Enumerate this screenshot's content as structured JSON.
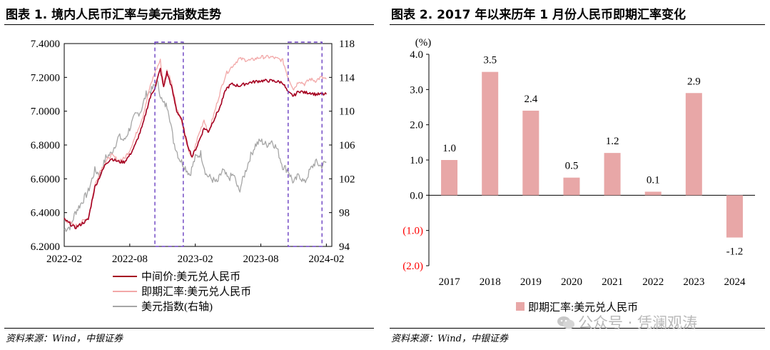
{
  "left": {
    "title": "图表 1. 境内人民币汇率与美元指数走势",
    "source": "资料来源：Wind，中银证券",
    "chart_data": {
      "type": "line",
      "x_ticks": [
        "2022-02",
        "2022-08",
        "2023-02",
        "2023-08",
        "2024-02"
      ],
      "x_range_months": [
        0,
        24.5
      ],
      "left_axis": {
        "ticks": [
          "7.4000",
          "7.2000",
          "7.0000",
          "6.8000",
          "6.6000",
          "6.4000",
          "6.2000"
        ],
        "range": [
          6.2,
          7.4
        ]
      },
      "right_axis": {
        "ticks": [
          "118",
          "114",
          "110",
          "106",
          "102",
          "98",
          "94"
        ],
        "range": [
          94,
          118
        ]
      },
      "legend": [
        "中间价:美元兑人民币",
        "即期汇率:美元兑人民币",
        "美元指数(右轴)"
      ],
      "series": [
        {
          "name": "中间价:美元兑人民币",
          "axis": "left",
          "color": "#a50021",
          "points": [
            [
              0,
              6.36
            ],
            [
              1,
              6.31
            ],
            [
              1.5,
              6.33
            ],
            [
              2.2,
              6.36
            ],
            [
              2.8,
              6.55
            ],
            [
              3.3,
              6.62
            ],
            [
              3.8,
              6.69
            ],
            [
              4.3,
              6.72
            ],
            [
              5,
              6.7
            ],
            [
              5.5,
              6.7
            ],
            [
              6,
              6.74
            ],
            [
              6.5,
              6.8
            ],
            [
              7.2,
              6.92
            ],
            [
              7.8,
              7.07
            ],
            [
              8.3,
              7.14
            ],
            [
              8.8,
              7.25
            ],
            [
              9.1,
              7.14
            ],
            [
              9.4,
              7.23
            ],
            [
              9.8,
              7.15
            ],
            [
              10.3,
              7.0
            ],
            [
              10.7,
              6.96
            ],
            [
              11.2,
              6.82
            ],
            [
              11.7,
              6.73
            ],
            [
              12.2,
              6.8
            ],
            [
              12.8,
              6.9
            ],
            [
              13.2,
              6.88
            ],
            [
              13.7,
              6.95
            ],
            [
              14.3,
              7.03
            ],
            [
              14.8,
              7.13
            ],
            [
              15.3,
              7.16
            ],
            [
              16,
              7.15
            ],
            [
              17,
              7.17
            ],
            [
              18,
              7.18
            ],
            [
              19,
              7.18
            ],
            [
              20,
              7.17
            ],
            [
              20.5,
              7.11
            ],
            [
              21,
              7.09
            ],
            [
              21.5,
              7.12
            ],
            [
              22,
              7.11
            ],
            [
              22.5,
              7.11
            ],
            [
              23,
              7.1
            ],
            [
              23.5,
              7.1
            ],
            [
              24,
              7.1
            ]
          ]
        },
        {
          "name": "即期汇率:美元兑人民币",
          "axis": "left",
          "color": "#f2a8a8",
          "points": [
            [
              0,
              6.36
            ],
            [
              1,
              6.32
            ],
            [
              1.5,
              6.34
            ],
            [
              2.2,
              6.37
            ],
            [
              2.8,
              6.56
            ],
            [
              3.3,
              6.65
            ],
            [
              3.8,
              6.7
            ],
            [
              4.3,
              6.74
            ],
            [
              5,
              6.71
            ],
            [
              5.5,
              6.72
            ],
            [
              6,
              6.77
            ],
            [
              6.5,
              6.85
            ],
            [
              7.2,
              6.97
            ],
            [
              7.8,
              7.13
            ],
            [
              8.3,
              7.23
            ],
            [
              8.8,
              7.3
            ],
            [
              9.1,
              7.16
            ],
            [
              9.4,
              7.24
            ],
            [
              9.8,
              7.18
            ],
            [
              10.3,
              7.02
            ],
            [
              10.7,
              6.95
            ],
            [
              11.2,
              6.8
            ],
            [
              11.7,
              6.72
            ],
            [
              12.2,
              6.84
            ],
            [
              12.8,
              6.95
            ],
            [
              13.2,
              6.87
            ],
            [
              13.7,
              6.98
            ],
            [
              14.3,
              7.12
            ],
            [
              14.8,
              7.22
            ],
            [
              15.3,
              7.26
            ],
            [
              16,
              7.31
            ],
            [
              17,
              7.3
            ],
            [
              18,
              7.32
            ],
            [
              19,
              7.32
            ],
            [
              20,
              7.3
            ],
            [
              20.5,
              7.2
            ],
            [
              21,
              7.13
            ],
            [
              21.5,
              7.18
            ],
            [
              22,
              7.16
            ],
            [
              22.5,
              7.19
            ],
            [
              23,
              7.18
            ],
            [
              23.5,
              7.2
            ],
            [
              24,
              7.19
            ]
          ]
        },
        {
          "name": "美元指数(右轴)",
          "axis": "right",
          "color": "#a6a6a6",
          "points": [
            [
              0,
              96.0
            ],
            [
              0.6,
              96.4
            ],
            [
              1,
              98.0
            ],
            [
              1.5,
              99.0
            ],
            [
              2.2,
              100.5
            ],
            [
              2.8,
              103.0
            ],
            [
              3.3,
              102.5
            ],
            [
              3.8,
              104.5
            ],
            [
              4.3,
              105.0
            ],
            [
              5,
              107.0
            ],
            [
              5.5,
              106.5
            ],
            [
              6,
              108.0
            ],
            [
              6.5,
              109.5
            ],
            [
              7,
              110.0
            ],
            [
              7.5,
              112.0
            ],
            [
              8,
              112.5
            ],
            [
              8.5,
              113.5
            ],
            [
              9,
              111.0
            ],
            [
              9.5,
              110.5
            ],
            [
              10,
              106.5
            ],
            [
              10.5,
              104.5
            ],
            [
              11,
              103.5
            ],
            [
              11.5,
              102.5
            ],
            [
              12,
              104.5
            ],
            [
              12.5,
              105.0
            ],
            [
              13,
              102.5
            ],
            [
              13.5,
              102.0
            ],
            [
              14,
              101.5
            ],
            [
              14.5,
              103.0
            ],
            [
              15,
              102.0
            ],
            [
              15.5,
              102.5
            ],
            [
              16,
              100.5
            ],
            [
              16.5,
              102.5
            ],
            [
              17,
              104.5
            ],
            [
              17.5,
              106.0
            ],
            [
              18,
              106.5
            ],
            [
              18.5,
              106.0
            ],
            [
              19,
              106.5
            ],
            [
              19.5,
              105.5
            ],
            [
              20,
              103.5
            ],
            [
              20.5,
              103.0
            ],
            [
              21,
              101.5
            ],
            [
              21.5,
              102.5
            ],
            [
              22,
              101.5
            ],
            [
              22.5,
              103.0
            ],
            [
              23,
              104.0
            ],
            [
              23.5,
              103.5
            ],
            [
              24,
              104.0
            ]
          ]
        }
      ],
      "highlight_boxes": [
        {
          "from_month": 8.3,
          "to_month": 10.9
        },
        {
          "from_month": 20.5,
          "to_month": 23.6
        }
      ]
    }
  },
  "right": {
    "title": "图表 2. 2017 年以来历年 1 月份人民币即期汇率变化",
    "source": "资料来源：Wind，中银证券",
    "chart_data": {
      "type": "bar",
      "ylabel": "(%)",
      "ylim": [
        -2.0,
        4.0
      ],
      "y_ticks": [
        "4.0",
        "3.0",
        "2.0",
        "1.0",
        "0.0",
        "(1.0)",
        "(2.0)"
      ],
      "categories": [
        "2017",
        "2018",
        "2019",
        "2020",
        "2021",
        "2022",
        "2023",
        "2024"
      ],
      "values": [
        1.0,
        3.5,
        2.4,
        0.5,
        1.2,
        0.1,
        2.9,
        -1.2
      ],
      "data_labels": [
        "1.0",
        "3.5",
        "2.4",
        "0.5",
        "1.2",
        "0.1",
        "2.9",
        "-1.2"
      ],
      "legend": [
        "即期汇率:美元兑人民币"
      ],
      "bar_color": "#e8a7a7",
      "negative_tick_color": "#ff0000"
    }
  },
  "watermark": "公众号 · 凭澜观涛"
}
